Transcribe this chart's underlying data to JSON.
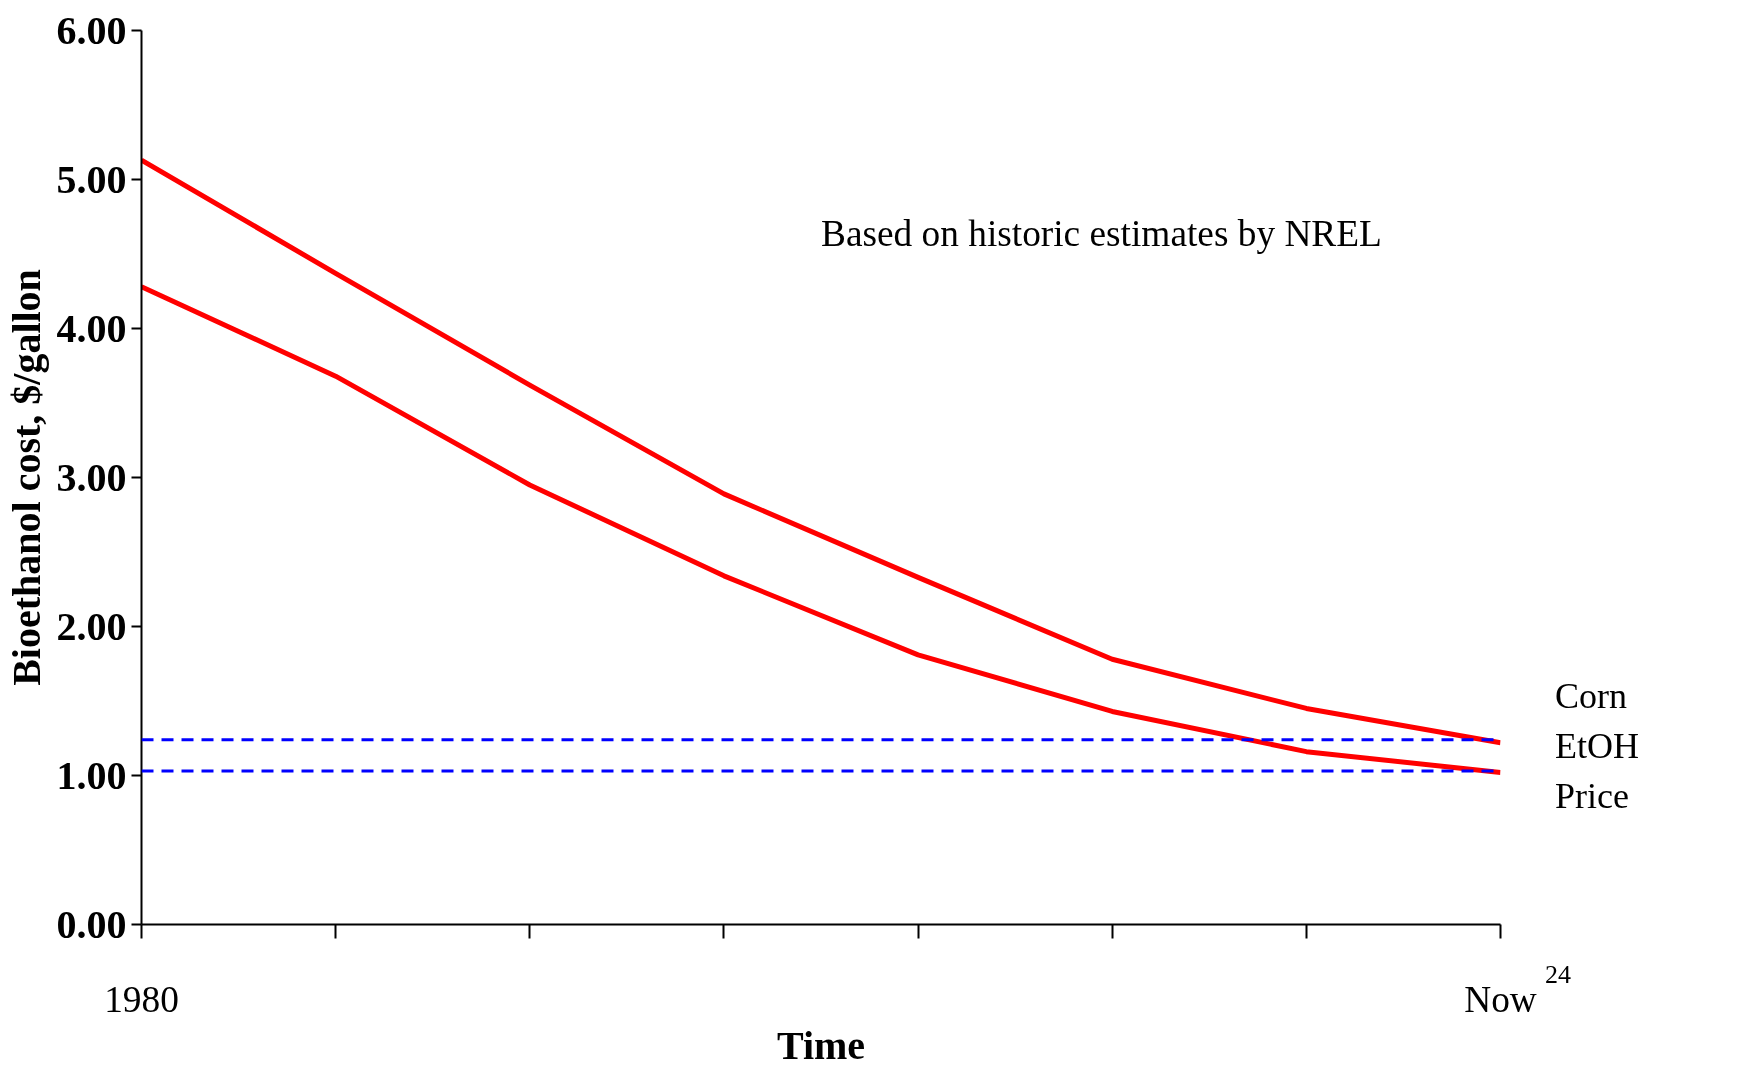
{
  "chart_data": {
    "type": "line",
    "xlabel": "Time",
    "ylabel": "Bioethanol cost, $/gallon",
    "categories": [
      "1980",
      null,
      null,
      null,
      null,
      null,
      null,
      "Now"
    ],
    "series": [
      {
        "color": "#ff0000",
        "values": [
          5.13,
          4.37,
          3.62,
          2.89,
          2.33,
          1.78,
          1.45,
          1.22
        ]
      },
      {
        "color": "#ff0000",
        "values": [
          4.28,
          3.68,
          2.95,
          2.34,
          1.81,
          1.43,
          1.16,
          1.02
        ]
      }
    ],
    "ylim": [
      0,
      6
    ],
    "yticks": [
      {
        "value": 0,
        "label": "0.00"
      },
      {
        "value": 1,
        "label": "1.00"
      },
      {
        "value": 2,
        "label": "2.00"
      },
      {
        "value": 3,
        "label": "3.00"
      },
      {
        "value": 4,
        "label": "4.00"
      },
      {
        "value": 5,
        "label": "5.00"
      },
      {
        "value": 6,
        "label": "6.00"
      }
    ],
    "ref_lines": [
      {
        "axis": "y",
        "value": 1.24,
        "color": "#0000ff",
        "line_style": "dashed"
      },
      {
        "axis": "y",
        "value": 1.03,
        "color": "#0000ff",
        "line_style": "dashed"
      }
    ],
    "annotations": [
      "Based on historic estimates by NREL",
      "Corn",
      "EtOH",
      "Price",
      "24"
    ],
    "grid": false,
    "marker": "none",
    "line_style": "solid"
  }
}
